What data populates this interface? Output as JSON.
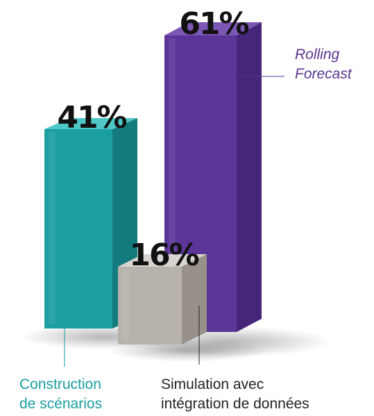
{
  "chart_data": {
    "type": "bar",
    "title": "",
    "xlabel": "",
    "ylabel": "",
    "unit": "%",
    "ylim": [
      0,
      70
    ],
    "grid": false,
    "legend": "none",
    "bars": [
      {
        "key": "scenarios",
        "value": 41,
        "label": "41%",
        "caption_lines": [
          "Construction",
          "de scénarios"
        ],
        "caption_color": "#1a9ea0",
        "caption_italic": false,
        "colors": {
          "front": "#1a9ea0",
          "side": "#137b7e",
          "top": "#4fc7c7"
        }
      },
      {
        "key": "simulation",
        "value": 16,
        "label": "16%",
        "caption_lines": [
          "Simulation avec",
          "intégration de données"
        ],
        "caption_color": "#222222",
        "caption_italic": false,
        "colors": {
          "front": "#b7b2ab",
          "side": "#97918a",
          "top": "#d8d5d0"
        }
      },
      {
        "key": "rolling",
        "value": 61,
        "label": "61%",
        "caption_lines": [
          "Rolling",
          "Forecast"
        ],
        "caption_color": "#5a3590",
        "caption_italic": true,
        "colors": {
          "front": "#5b3597",
          "side": "#45267a",
          "top": "#7c57b4"
        }
      }
    ]
  }
}
